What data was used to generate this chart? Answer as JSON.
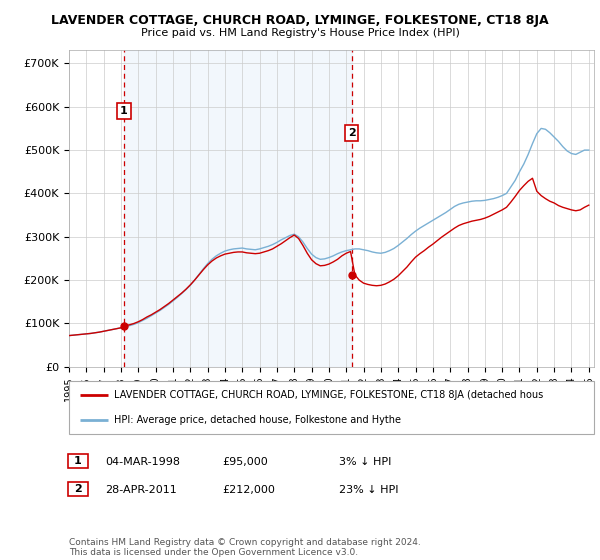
{
  "title1": "LAVENDER COTTAGE, CHURCH ROAD, LYMINGE, FOLKESTONE, CT18 8JA",
  "title2": "Price paid vs. HM Land Registry's House Price Index (HPI)",
  "sale1_date": "04-MAR-1998",
  "sale1_price": 95000,
  "sale1_hpi_pct": "3% ↓ HPI",
  "sale1_year": 1998.17,
  "sale2_date": "28-APR-2011",
  "sale2_price": 212000,
  "sale2_hpi_pct": "23% ↓ HPI",
  "sale2_year": 2011.32,
  "legend_property": "LAVENDER COTTAGE, CHURCH ROAD, LYMINGE, FOLKESTONE, CT18 8JA (detached hous",
  "legend_hpi": "HPI: Average price, detached house, Folkestone and Hythe",
  "footnote": "Contains HM Land Registry data © Crown copyright and database right 2024.\nThis data is licensed under the Open Government Licence v3.0.",
  "ylim_max": 730000,
  "background_color": "#ffffff",
  "grid_color": "#cccccc",
  "hpi_color": "#7ab0d4",
  "property_color": "#cc0000",
  "dashed_line_color": "#cc0000",
  "shade_color": "#ddeeff",
  "years_hpi": [
    1995.0,
    1995.25,
    1995.5,
    1995.75,
    1996.0,
    1996.25,
    1996.5,
    1996.75,
    1997.0,
    1997.25,
    1997.5,
    1997.75,
    1998.0,
    1998.25,
    1998.5,
    1998.75,
    1999.0,
    1999.25,
    1999.5,
    1999.75,
    2000.0,
    2000.25,
    2000.5,
    2000.75,
    2001.0,
    2001.25,
    2001.5,
    2001.75,
    2002.0,
    2002.25,
    2002.5,
    2002.75,
    2003.0,
    2003.25,
    2003.5,
    2003.75,
    2004.0,
    2004.25,
    2004.5,
    2004.75,
    2005.0,
    2005.25,
    2005.5,
    2005.75,
    2006.0,
    2006.25,
    2006.5,
    2006.75,
    2007.0,
    2007.25,
    2007.5,
    2007.75,
    2008.0,
    2008.25,
    2008.5,
    2008.75,
    2009.0,
    2009.25,
    2009.5,
    2009.75,
    2010.0,
    2010.25,
    2010.5,
    2010.75,
    2011.0,
    2011.25,
    2011.5,
    2011.75,
    2012.0,
    2012.25,
    2012.5,
    2012.75,
    2013.0,
    2013.25,
    2013.5,
    2013.75,
    2014.0,
    2014.25,
    2014.5,
    2014.75,
    2015.0,
    2015.25,
    2015.5,
    2015.75,
    2016.0,
    2016.25,
    2016.5,
    2016.75,
    2017.0,
    2017.25,
    2017.5,
    2017.75,
    2018.0,
    2018.25,
    2018.5,
    2018.75,
    2019.0,
    2019.25,
    2019.5,
    2019.75,
    2020.0,
    2020.25,
    2020.5,
    2020.75,
    2021.0,
    2021.25,
    2021.5,
    2021.75,
    2022.0,
    2022.25,
    2022.5,
    2022.75,
    2023.0,
    2023.25,
    2023.5,
    2023.75,
    2024.0,
    2024.25,
    2024.5,
    2024.75,
    2025.0
  ],
  "hpi_values": [
    72000,
    73000,
    74000,
    75000,
    76000,
    77000,
    78500,
    80000,
    82000,
    84000,
    86000,
    88000,
    90000,
    92000,
    95000,
    98000,
    102000,
    107000,
    112000,
    118000,
    124000,
    130000,
    137000,
    144000,
    152000,
    160000,
    169000,
    178000,
    188000,
    200000,
    213000,
    226000,
    238000,
    248000,
    256000,
    262000,
    267000,
    270000,
    272000,
    273000,
    274000,
    272000,
    271000,
    270000,
    272000,
    275000,
    278000,
    282000,
    287000,
    293000,
    298000,
    303000,
    306000,
    300000,
    288000,
    273000,
    260000,
    252000,
    248000,
    249000,
    252000,
    256000,
    261000,
    265000,
    268000,
    270000,
    272000,
    272000,
    270000,
    268000,
    265000,
    263000,
    262000,
    264000,
    268000,
    273000,
    280000,
    288000,
    296000,
    305000,
    313000,
    320000,
    326000,
    332000,
    338000,
    344000,
    350000,
    356000,
    363000,
    370000,
    375000,
    378000,
    380000,
    382000,
    383000,
    383000,
    384000,
    386000,
    388000,
    391000,
    395000,
    400000,
    415000,
    430000,
    450000,
    468000,
    490000,
    515000,
    538000,
    550000,
    548000,
    540000,
    530000,
    520000,
    508000,
    498000,
    492000,
    490000,
    495000,
    500000,
    500000
  ],
  "prop_values": [
    72000,
    73000,
    74000,
    75000,
    76000,
    77000,
    78500,
    80000,
    82000,
    84000,
    86000,
    88000,
    90000,
    95000,
    97000,
    100000,
    104000,
    109000,
    115000,
    120000,
    126000,
    132000,
    139000,
    146000,
    154000,
    162000,
    170000,
    179000,
    189000,
    200000,
    212000,
    224000,
    235000,
    244000,
    251000,
    256000,
    260000,
    262000,
    264000,
    265000,
    265000,
    263000,
    262000,
    261000,
    262000,
    265000,
    268000,
    272000,
    278000,
    284000,
    291000,
    298000,
    304000,
    296000,
    280000,
    262000,
    247000,
    238000,
    233000,
    234000,
    237000,
    242000,
    248000,
    256000,
    262000,
    266000,
    212000,
    200000,
    193000,
    190000,
    188000,
    187000,
    188000,
    191000,
    196000,
    202000,
    210000,
    220000,
    230000,
    242000,
    253000,
    261000,
    268000,
    276000,
    283000,
    291000,
    299000,
    306000,
    313000,
    320000,
    326000,
    330000,
    333000,
    336000,
    338000,
    340000,
    343000,
    347000,
    352000,
    357000,
    362000,
    368000,
    380000,
    393000,
    407000,
    418000,
    428000,
    435000,
    405000,
    395000,
    388000,
    382000,
    378000,
    372000,
    368000,
    365000,
    362000,
    360000,
    362000,
    368000,
    373000
  ]
}
